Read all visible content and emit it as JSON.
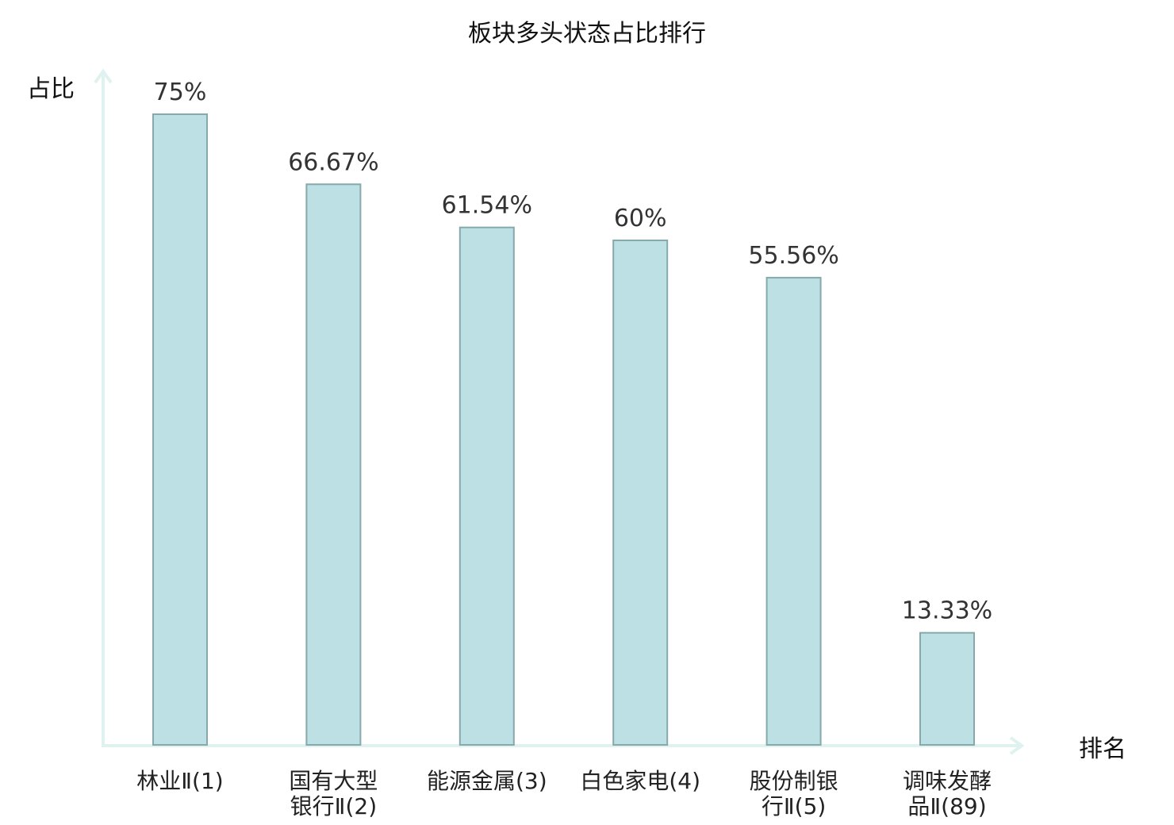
{
  "chart_data": {
    "type": "bar",
    "title": "板块多头状态占比排行",
    "ylabel": "占比",
    "xlabel": "排名",
    "categories": [
      [
        "林业Ⅱ(1)"
      ],
      [
        "国有大型",
        "银行Ⅱ(2)"
      ],
      [
        "能源金属(3)"
      ],
      [
        "白色家电(4)"
      ],
      [
        "股份制银",
        "行Ⅱ(5)"
      ],
      [
        "调味发酵",
        "品Ⅱ(89)"
      ]
    ],
    "values": [
      75,
      66.67,
      61.54,
      60,
      55.56,
      13.33
    ],
    "value_labels": [
      "75%",
      "66.67%",
      "61.54%",
      "60%",
      "55.56%",
      "13.33%"
    ],
    "ylim": [
      0,
      75
    ],
    "grid": false,
    "legend": "none",
    "highlight_index": 5,
    "colors": {
      "bar_fill": "#bce0e3",
      "bar_stroke": "#86a9ab",
      "axis": "#dff2ef",
      "highlight_label": "#e31414",
      "label": "#222222"
    }
  }
}
